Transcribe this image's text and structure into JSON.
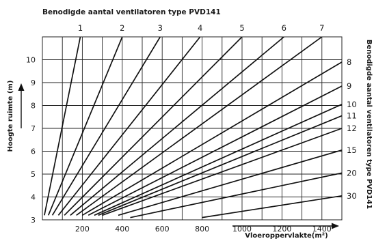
{
  "chart_data": {
    "type": "line",
    "title": "Benodigde aantal ventilatoren type PVD141",
    "xlabel": "Vloeroppervlakte(m²)",
    "ylabel": "Hoogte ruimte (m)",
    "right_label": "Benodigde aantal ventilatoren type PVD141",
    "xlim": [
      0,
      1500
    ],
    "ylim": [
      3,
      11
    ],
    "x_grid_step": 100,
    "y_grid_step": 1,
    "grid": true,
    "x_ticks": [
      "200",
      "400",
      "600",
      "800",
      "1000",
      "1200",
      "1400"
    ],
    "x_tick_values": [
      200,
      400,
      600,
      800,
      1000,
      1200,
      1400
    ],
    "y_ticks": [
      "3",
      "4",
      "5",
      "6",
      "7",
      "8",
      "9",
      "10"
    ],
    "y_tick_values": [
      3,
      4,
      5,
      6,
      7,
      8,
      9,
      10
    ],
    "series": [
      {
        "name": "1",
        "x": [
          10,
          190
        ],
        "y": [
          3.2,
          11
        ]
      },
      {
        "name": "2",
        "x": [
          30,
          400
        ],
        "y": [
          3.2,
          11
        ]
      },
      {
        "name": "3",
        "x": [
          50,
          590
        ],
        "y": [
          3.2,
          11
        ]
      },
      {
        "name": "4",
        "x": [
          80,
          790
        ],
        "y": [
          3.2,
          11
        ]
      },
      {
        "name": "5",
        "x": [
          110,
          1000
        ],
        "y": [
          3.2,
          11
        ]
      },
      {
        "name": "6",
        "x": [
          140,
          1210
        ],
        "y": [
          3.2,
          11
        ]
      },
      {
        "name": "7",
        "x": [
          170,
          1400
        ],
        "y": [
          3.2,
          11
        ]
      },
      {
        "name": "8",
        "x": [
          200,
          1500
        ],
        "y": [
          3.2,
          9.9
        ]
      },
      {
        "name": "9",
        "x": [
          230,
          1500
        ],
        "y": [
          3.2,
          8.85
        ]
      },
      {
        "name": "10",
        "x": [
          260,
          1500
        ],
        "y": [
          3.2,
          8.05
        ]
      },
      {
        "name": "11",
        "x": [
          280,
          1500
        ],
        "y": [
          3.2,
          7.55
        ]
      },
      {
        "name": "12",
        "x": [
          300,
          1500
        ],
        "y": [
          3.2,
          7.0
        ]
      },
      {
        "name": "15",
        "x": [
          380,
          1500
        ],
        "y": [
          3.2,
          6.05
        ]
      },
      {
        "name": "20",
        "x": [
          440,
          1500
        ],
        "y": [
          3.1,
          5.05
        ]
      },
      {
        "name": "30",
        "x": [
          800,
          1500
        ],
        "y": [
          3.1,
          4.05
        ]
      }
    ]
  }
}
